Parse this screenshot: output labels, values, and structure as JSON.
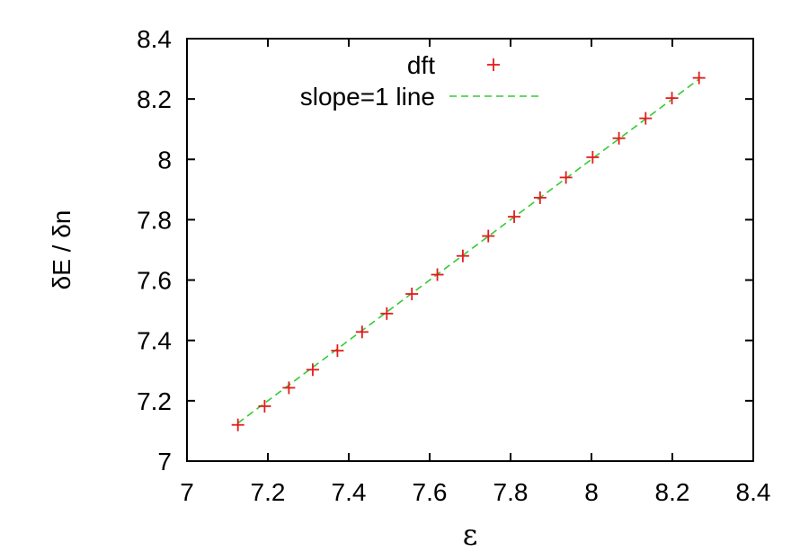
{
  "chart_data": {
    "type": "scatter",
    "title": "",
    "xlabel": "ε",
    "ylabel": "δE / δn",
    "xlim": [
      7,
      8.4
    ],
    "ylim": [
      7,
      8.4
    ],
    "x_ticks": [
      "7",
      "7.2",
      "7.4",
      "7.6",
      "7.8",
      "8",
      "8.2",
      "8.4"
    ],
    "y_ticks": [
      "7",
      "7.2",
      "7.4",
      "7.6",
      "7.8",
      "8",
      "8.2",
      "8.4"
    ],
    "grid": false,
    "legend_position": "top-center",
    "series": [
      {
        "name": "dft",
        "kind": "points",
        "marker": "plus",
        "color": "#e41a1c",
        "x": [
          7.126,
          7.192,
          7.252,
          7.311,
          7.372,
          7.433,
          7.494,
          7.556,
          7.619,
          7.682,
          7.745,
          7.809,
          7.873,
          7.937,
          8.003,
          8.068,
          8.134,
          8.199,
          8.266
        ],
        "y": [
          7.12,
          7.182,
          7.243,
          7.303,
          7.366,
          7.428,
          7.489,
          7.554,
          7.618,
          7.68,
          7.746,
          7.81,
          7.873,
          7.94,
          8.007,
          8.07,
          8.136,
          8.203,
          8.27
        ]
      },
      {
        "name": "slope=1 line",
        "kind": "line",
        "dashed": true,
        "color": "#33cc33",
        "x": [
          7.126,
          8.266
        ],
        "y": [
          7.126,
          8.266
        ]
      }
    ]
  }
}
